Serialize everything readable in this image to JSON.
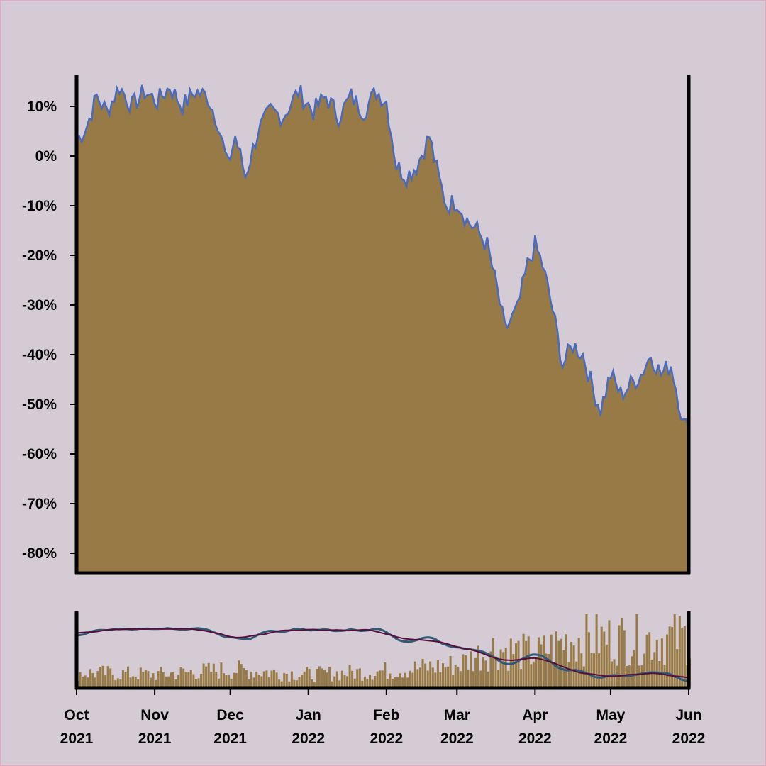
{
  "colors": {
    "background": "#d5cbd5",
    "area_fill": "#977a45",
    "price_line": "#4a6bbd",
    "volume_bars": "#977a45",
    "ma_fast": "#2f5a78",
    "ma_slow": "#5a0c3a",
    "axis": "#000000"
  },
  "chart_data": [
    {
      "type": "area",
      "title": "",
      "xlabel": "",
      "ylabel": "",
      "ylim": [
        -84,
        16
      ],
      "yticks": [
        "10%",
        "0%",
        "-10%",
        "-20%",
        "-30%",
        "-40%",
        "-50%",
        "-60%",
        "-70%",
        "-80%"
      ],
      "ytick_values": [
        10,
        0,
        -10,
        -20,
        -30,
        -40,
        -50,
        -60,
        -70,
        -80
      ],
      "xlim": [
        "2021-10-01",
        "2022-06-01"
      ],
      "xticks": [
        {
          "date": "2021-10-01",
          "month": "Oct",
          "year": "2021"
        },
        {
          "date": "2021-11-01",
          "month": "Nov",
          "year": "2021"
        },
        {
          "date": "2021-12-01",
          "month": "Dec",
          "year": "2021"
        },
        {
          "date": "2022-01-01",
          "month": "Jan",
          "year": "2022"
        },
        {
          "date": "2022-02-01",
          "month": "Feb",
          "year": "2022"
        },
        {
          "date": "2022-03-01",
          "month": "Mar",
          "year": "2022"
        },
        {
          "date": "2022-04-01",
          "month": "Apr",
          "year": "2022"
        },
        {
          "date": "2022-05-01",
          "month": "May",
          "year": "2022"
        },
        {
          "date": "2022-06-01",
          "month": "Jun",
          "year": "2022"
        }
      ],
      "grid": false,
      "series": [
        {
          "values_percent_change": [
            {
              "date": "2021-10-01",
              "value": 3
            },
            {
              "date": "2021-10-05",
              "value": 6
            },
            {
              "date": "2021-10-09",
              "value": 12
            },
            {
              "date": "2021-10-13",
              "value": 9
            },
            {
              "date": "2021-10-18",
              "value": 14
            },
            {
              "date": "2021-10-23",
              "value": 10
            },
            {
              "date": "2021-10-28",
              "value": 13
            },
            {
              "date": "2021-11-02",
              "value": 11
            },
            {
              "date": "2021-11-07",
              "value": 14
            },
            {
              "date": "2021-11-12",
              "value": 10
            },
            {
              "date": "2021-11-17",
              "value": 13
            },
            {
              "date": "2021-11-22",
              "value": 12
            },
            {
              "date": "2021-11-26",
              "value": 7
            },
            {
              "date": "2021-11-30",
              "value": -2
            },
            {
              "date": "2021-12-03",
              "value": 4
            },
            {
              "date": "2021-12-07",
              "value": -4
            },
            {
              "date": "2021-12-12",
              "value": 5
            },
            {
              "date": "2021-12-17",
              "value": 9
            },
            {
              "date": "2021-12-22",
              "value": 8
            },
            {
              "date": "2021-12-28",
              "value": 13
            },
            {
              "date": "2022-01-03",
              "value": 9
            },
            {
              "date": "2022-01-08",
              "value": 12
            },
            {
              "date": "2022-01-13",
              "value": 8
            },
            {
              "date": "2022-01-18",
              "value": 12
            },
            {
              "date": "2022-01-23",
              "value": 9
            },
            {
              "date": "2022-01-28",
              "value": 13
            },
            {
              "date": "2022-02-01",
              "value": 11
            },
            {
              "date": "2022-02-05",
              "value": -2
            },
            {
              "date": "2022-02-09",
              "value": -4
            },
            {
              "date": "2022-02-13",
              "value": -2
            },
            {
              "date": "2022-02-18",
              "value": 4
            },
            {
              "date": "2022-02-22",
              "value": -5
            },
            {
              "date": "2022-02-25",
              "value": -10
            },
            {
              "date": "2022-03-01",
              "value": -9
            },
            {
              "date": "2022-03-05",
              "value": -13
            },
            {
              "date": "2022-03-09",
              "value": -15
            },
            {
              "date": "2022-03-13",
              "value": -18
            },
            {
              "date": "2022-03-17",
              "value": -27
            },
            {
              "date": "2022-03-20",
              "value": -35
            },
            {
              "date": "2022-03-25",
              "value": -31
            },
            {
              "date": "2022-03-29",
              "value": -22
            },
            {
              "date": "2022-04-01",
              "value": -18
            },
            {
              "date": "2022-04-04",
              "value": -22
            },
            {
              "date": "2022-04-08",
              "value": -31
            },
            {
              "date": "2022-04-12",
              "value": -42
            },
            {
              "date": "2022-04-16",
              "value": -38
            },
            {
              "date": "2022-04-20",
              "value": -40
            },
            {
              "date": "2022-04-24",
              "value": -47
            },
            {
              "date": "2022-04-27",
              "value": -51
            },
            {
              "date": "2022-05-01",
              "value": -44
            },
            {
              "date": "2022-05-05",
              "value": -48
            },
            {
              "date": "2022-05-09",
              "value": -46
            },
            {
              "date": "2022-05-13",
              "value": -44
            },
            {
              "date": "2022-05-17",
              "value": -40
            },
            {
              "date": "2022-05-21",
              "value": -44
            },
            {
              "date": "2022-05-25",
              "value": -42
            },
            {
              "date": "2022-05-28",
              "value": -49
            },
            {
              "date": "2022-05-30",
              "value": -54
            },
            {
              "date": "2022-06-01",
              "value": -55
            }
          ]
        }
      ]
    },
    {
      "type": "bar",
      "title": "",
      "shows_axis_labels": false,
      "volume_level_relative": [
        {
          "date": "2021-10-01",
          "value": 0.25
        },
        {
          "date": "2021-11-01",
          "value": 0.22
        },
        {
          "date": "2021-12-01",
          "value": 0.3
        },
        {
          "date": "2022-01-01",
          "value": 0.22
        },
        {
          "date": "2022-02-01",
          "value": 0.28
        },
        {
          "date": "2022-03-01",
          "value": 0.38
        },
        {
          "date": "2022-03-15",
          "value": 0.65
        },
        {
          "date": "2022-04-01",
          "value": 0.55
        },
        {
          "date": "2022-04-15",
          "value": 0.8
        },
        {
          "date": "2022-05-01",
          "value": 0.8
        },
        {
          "date": "2022-06-01",
          "value": 0.82
        }
      ],
      "moving_averages": [
        "fast",
        "slow"
      ]
    }
  ]
}
